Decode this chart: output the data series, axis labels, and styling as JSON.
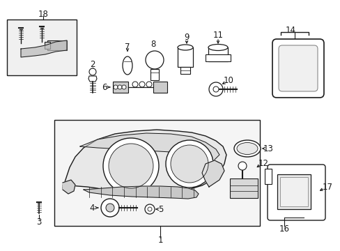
{
  "background_color": "#ffffff",
  "fig_width": 4.89,
  "fig_height": 3.6,
  "dpi": 100
}
